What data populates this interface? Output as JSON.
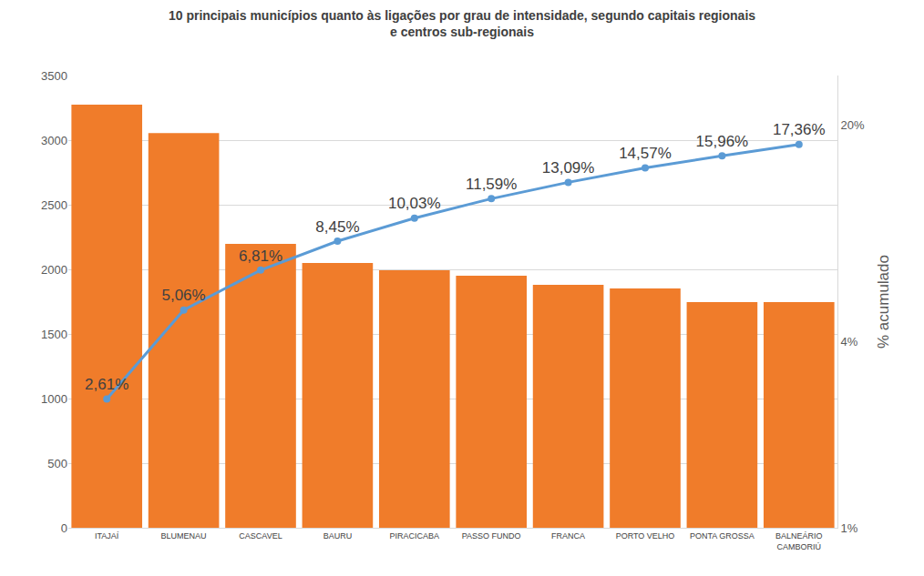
{
  "chart_data": {
    "type": "bar",
    "title": "10 principais municípios quanto às ligações por grau de intensidade, segundo capitais regionais e centros sub-regionais",
    "categories": [
      "ITAJAÍ",
      "BLUMENAU",
      "CASCAVEL",
      "BAURU",
      "PIRACICABA",
      "PASSO FUNDO",
      "FRANCA",
      "PORTO VELHO",
      "PONTA GROSSA",
      "BALNEÁRIO CAMBORIÚ"
    ],
    "series": [
      {
        "name": "Ligações",
        "type": "bar",
        "color": "#f07c2a",
        "values": [
          3275,
          3055,
          2197,
          2049,
          1993,
          1951,
          1880,
          1852,
          1746,
          1746
        ]
      },
      {
        "name": "% acumulado",
        "type": "line",
        "axis": "y2",
        "color": "#5b9bd5",
        "marker": "circle",
        "data_labels": true,
        "values": [
          2.61,
          5.06,
          6.81,
          8.45,
          10.03,
          11.59,
          13.09,
          14.57,
          15.96,
          17.36
        ],
        "value_labels": [
          "2,61%",
          "5,06%",
          "6,81%",
          "8,45%",
          "10,03%",
          "11,59%",
          "13,09%",
          "14,57%",
          "15,96%",
          "17,36%"
        ]
      }
    ],
    "ylim": [
      0,
      3500
    ],
    "yticks": [
      0,
      500,
      1000,
      1500,
      2000,
      2500,
      3000,
      3500
    ],
    "y2lim": [
      1,
      29
    ],
    "y2ticks": [
      {
        "value": 1,
        "label": "1%"
      },
      {
        "value": 4,
        "label": "4%"
      },
      {
        "value": 20,
        "label": "20%"
      }
    ],
    "y2_label": "% acumulado",
    "log": "y2",
    "grid": true
  }
}
